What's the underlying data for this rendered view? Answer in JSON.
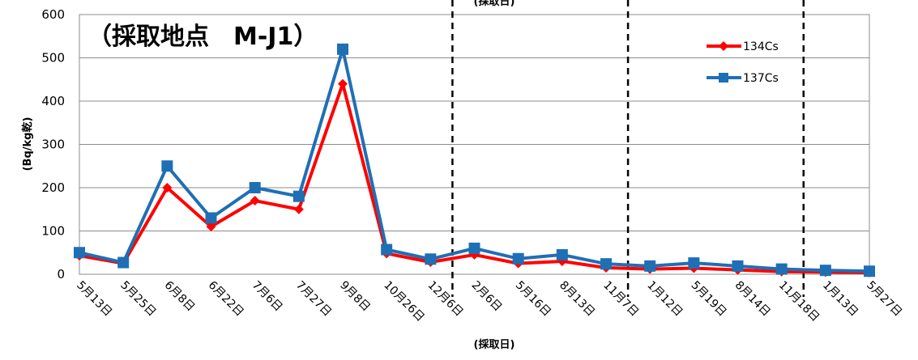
{
  "chart_data": {
    "type": "line",
    "title": "（採取地点　M-J1）",
    "xlabel": "(採取日)",
    "top_label": "(採取日)",
    "ylabel": "(Bq/kg乾)",
    "ylim": [
      0,
      600
    ],
    "yticks": [
      0,
      100,
      200,
      300,
      400,
      500,
      600
    ],
    "grid": true,
    "legend_position": "top-right",
    "categories": [
      "5月13日",
      "5月25日",
      "6月8日",
      "6月22日",
      "7月6日",
      "7月27日",
      "9月8日",
      "10月26日",
      "12月6日",
      "2月6日",
      "5月16日",
      "8月13日",
      "11月7日",
      "1月12日",
      "5月19日",
      "8月14日",
      "11月18日",
      "1月13日",
      "5月27日"
    ],
    "dashed_separators_after_index": [
      8,
      12,
      16
    ],
    "series": [
      {
        "name": "134Cs",
        "color": "#ff0000",
        "marker": "diamond",
        "values": [
          43,
          25,
          200,
          110,
          170,
          150,
          440,
          48,
          28,
          45,
          25,
          30,
          15,
          12,
          14,
          10,
          6,
          5,
          4
        ]
      },
      {
        "name": "137Cs",
        "color": "#1f6fb5",
        "marker": "square",
        "values": [
          50,
          27,
          250,
          130,
          200,
          180,
          520,
          57,
          35,
          60,
          36,
          45,
          24,
          19,
          26,
          19,
          12,
          9,
          7
        ]
      }
    ]
  }
}
